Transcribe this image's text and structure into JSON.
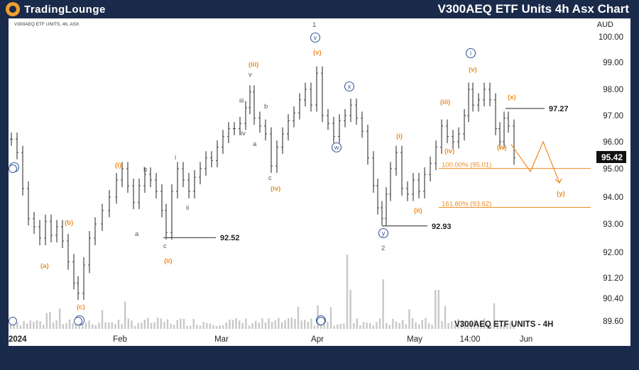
{
  "header": {
    "brand": "TradingLounge",
    "title": "V300AEQ ETF Units 4h Asx Chart"
  },
  "chart_data": {
    "type": "candlestick",
    "instrument_label": "V300AEQ ETF UNITS, 4h, ASX",
    "watermark": "V300AEQ ETF UNITS - 4H",
    "currency": "AUD",
    "y_ticks": [
      "100.00",
      "99.00",
      "98.00",
      "97.00",
      "96.00",
      "95.00",
      "94.00",
      "93.00",
      "92.00",
      "91.20",
      "90.40",
      "89.60"
    ],
    "x_ticks": [
      "2024",
      "Feb",
      "Mar",
      "Apr",
      "May",
      "14:00",
      "Jun"
    ],
    "last_price": "95.42",
    "price_lines": [
      {
        "label": "97.27",
        "value": 97.27
      },
      {
        "label": "92.93",
        "value": 92.93
      },
      {
        "label": "92.52",
        "value": 92.52
      }
    ],
    "fib_levels": [
      {
        "label": "100.00% (95.01)",
        "value": 95.01
      },
      {
        "label": "161.80% (93.62)",
        "value": 93.62
      }
    ],
    "wave_labels": [
      {
        "text": "1",
        "color": "#555555"
      },
      {
        "text": "2",
        "color": "#555555"
      },
      {
        "text": "i",
        "color": "#3b5998"
      },
      {
        "text": "iv",
        "color": "#3b5998"
      },
      {
        "text": "v",
        "color": "#3b5998"
      },
      {
        "text": "w",
        "color": "#3b5998"
      },
      {
        "text": "x",
        "color": "#3b5998"
      },
      {
        "text": "y",
        "color": "#3b5998"
      },
      {
        "text": "i",
        "color": "#3b5998"
      },
      {
        "text": "ii",
        "color": "#3b5998"
      },
      {
        "text": "(a)",
        "color": "#f08c1e"
      },
      {
        "text": "(b)",
        "color": "#f08c1e"
      },
      {
        "text": "(c)",
        "color": "#f08c1e"
      },
      {
        "text": "(i)",
        "color": "#f08c1e"
      },
      {
        "text": "(ii)",
        "color": "#f08c1e"
      },
      {
        "text": "(iii)",
        "color": "#f08c1e"
      },
      {
        "text": "(iv)",
        "color": "#f08c1e"
      },
      {
        "text": "(v)",
        "color": "#f08c1e"
      },
      {
        "text": "(i)",
        "color": "#f08c1e"
      },
      {
        "text": "(ii)",
        "color": "#f08c1e"
      },
      {
        "text": "(iii)",
        "color": "#f08c1e"
      },
      {
        "text": "(iv)",
        "color": "#f08c1e"
      },
      {
        "text": "(v)",
        "color": "#f08c1e"
      },
      {
        "text": "(w)",
        "color": "#f08c1e"
      },
      {
        "text": "(x)",
        "color": "#f08c1e"
      },
      {
        "text": "(y)",
        "color": "#f08c1e"
      },
      {
        "text": "a",
        "color": "#555555"
      },
      {
        "text": "b",
        "color": "#555555"
      },
      {
        "text": "c",
        "color": "#555555"
      },
      {
        "text": "i",
        "color": "#555555"
      },
      {
        "text": "ii",
        "color": "#555555"
      },
      {
        "text": "iii",
        "color": "#555555"
      },
      {
        "text": "iv",
        "color": "#555555"
      },
      {
        "text": "v",
        "color": "#555555"
      },
      {
        "text": "a",
        "color": "#555555"
      },
      {
        "text": "b",
        "color": "#555555"
      },
      {
        "text": "c",
        "color": "#555555"
      }
    ],
    "colors": {
      "candles": "#444444",
      "fib": "#f08c1e",
      "projection": "#f08c1e",
      "volume": "#c8c8c8",
      "header_bg": "#1a2a4a",
      "last_price_bg": "#111111"
    }
  }
}
